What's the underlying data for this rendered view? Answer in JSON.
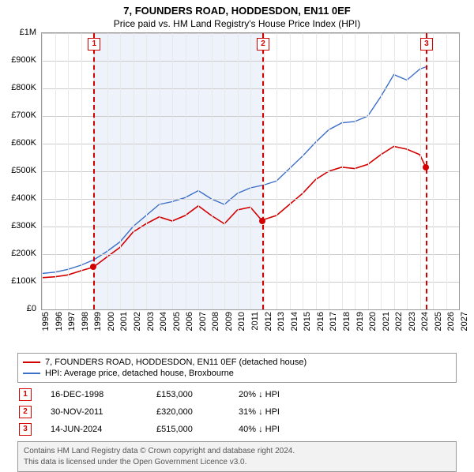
{
  "title": "7, FOUNDERS ROAD, HODDESDON, EN11 0EF",
  "subtitle": "Price paid vs. HM Land Registry's House Price Index (HPI)",
  "chart": {
    "type": "line",
    "x_min": 1995,
    "x_max": 2027,
    "y_min": 0,
    "y_max": 1000000,
    "y_ticks": [
      0,
      100000,
      200000,
      300000,
      400000,
      500000,
      600000,
      700000,
      800000,
      900000,
      1000000
    ],
    "y_labels": [
      "£0",
      "£100K",
      "£200K",
      "£300K",
      "£400K",
      "£500K",
      "£600K",
      "£700K",
      "£800K",
      "£900K",
      "£1M"
    ],
    "x_ticks": [
      1995,
      1996,
      1997,
      1998,
      1999,
      2000,
      2001,
      2002,
      2003,
      2004,
      2005,
      2006,
      2007,
      2008,
      2009,
      2010,
      2011,
      2012,
      2013,
      2014,
      2015,
      2016,
      2017,
      2018,
      2019,
      2020,
      2021,
      2022,
      2023,
      2024,
      2025,
      2026,
      2027
    ],
    "background_color": "#ffffff",
    "grid_color": "#cccccc",
    "shade_color": "#eef2fa",
    "shade_ranges": [
      [
        1998.96,
        2011.91
      ]
    ],
    "series": [
      {
        "name": "7, FOUNDERS ROAD, HODDESDON, EN11 0EF (detached house)",
        "color": "#d40000",
        "width": 1.6,
        "points": [
          [
            1995,
            115000
          ],
          [
            1996,
            118000
          ],
          [
            1997,
            125000
          ],
          [
            1998,
            140000
          ],
          [
            1998.96,
            153000
          ],
          [
            2000,
            190000
          ],
          [
            2001,
            225000
          ],
          [
            2002,
            280000
          ],
          [
            2003,
            310000
          ],
          [
            2004,
            335000
          ],
          [
            2005,
            320000
          ],
          [
            2006,
            340000
          ],
          [
            2007,
            375000
          ],
          [
            2008,
            340000
          ],
          [
            2009,
            310000
          ],
          [
            2010,
            360000
          ],
          [
            2011,
            370000
          ],
          [
            2011.91,
            320000
          ],
          [
            2012,
            325000
          ],
          [
            2013,
            340000
          ],
          [
            2014,
            380000
          ],
          [
            2015,
            420000
          ],
          [
            2016,
            470000
          ],
          [
            2017,
            500000
          ],
          [
            2018,
            515000
          ],
          [
            2019,
            510000
          ],
          [
            2020,
            525000
          ],
          [
            2021,
            560000
          ],
          [
            2022,
            590000
          ],
          [
            2023,
            580000
          ],
          [
            2024,
            560000
          ],
          [
            2024.45,
            515000
          ]
        ]
      },
      {
        "name": "HPI: Average price, detached house, Broxbourne",
        "color": "#3b6fc9",
        "width": 1.4,
        "points": [
          [
            1995,
            130000
          ],
          [
            1996,
            135000
          ],
          [
            1997,
            145000
          ],
          [
            1998,
            160000
          ],
          [
            1999,
            180000
          ],
          [
            2000,
            210000
          ],
          [
            2001,
            245000
          ],
          [
            2002,
            300000
          ],
          [
            2003,
            340000
          ],
          [
            2004,
            380000
          ],
          [
            2005,
            390000
          ],
          [
            2006,
            405000
          ],
          [
            2007,
            430000
          ],
          [
            2008,
            400000
          ],
          [
            2009,
            380000
          ],
          [
            2010,
            420000
          ],
          [
            2011,
            440000
          ],
          [
            2012,
            450000
          ],
          [
            2013,
            465000
          ],
          [
            2014,
            510000
          ],
          [
            2015,
            555000
          ],
          [
            2016,
            605000
          ],
          [
            2017,
            650000
          ],
          [
            2018,
            675000
          ],
          [
            2019,
            680000
          ],
          [
            2020,
            700000
          ],
          [
            2021,
            770000
          ],
          [
            2022,
            850000
          ],
          [
            2023,
            830000
          ],
          [
            2024,
            870000
          ],
          [
            2024.6,
            880000
          ]
        ]
      }
    ],
    "markers": [
      {
        "n": "1",
        "x": 1998.96,
        "color": "#d40000",
        "point_y": 153000
      },
      {
        "n": "2",
        "x": 2011.91,
        "color": "#d40000",
        "point_y": 320000
      },
      {
        "n": "3",
        "x": 2024.45,
        "color": "#d40000",
        "point_y": 515000
      }
    ]
  },
  "legend": [
    {
      "color": "#d40000",
      "label": "7, FOUNDERS ROAD, HODDESDON, EN11 0EF (detached house)"
    },
    {
      "color": "#3b6fc9",
      "label": "HPI: Average price, detached house, Broxbourne"
    }
  ],
  "transactions": [
    {
      "n": "1",
      "color": "#d40000",
      "date": "16-DEC-1998",
      "price": "£153,000",
      "delta": "20% ↓ HPI"
    },
    {
      "n": "2",
      "color": "#d40000",
      "date": "30-NOV-2011",
      "price": "£320,000",
      "delta": "31% ↓ HPI"
    },
    {
      "n": "3",
      "color": "#d40000",
      "date": "14-JUN-2024",
      "price": "£515,000",
      "delta": "40% ↓ HPI"
    }
  ],
  "footer_line1": "Contains HM Land Registry data © Crown copyright and database right 2024.",
  "footer_line2": "This data is licensed under the Open Government Licence v3.0."
}
